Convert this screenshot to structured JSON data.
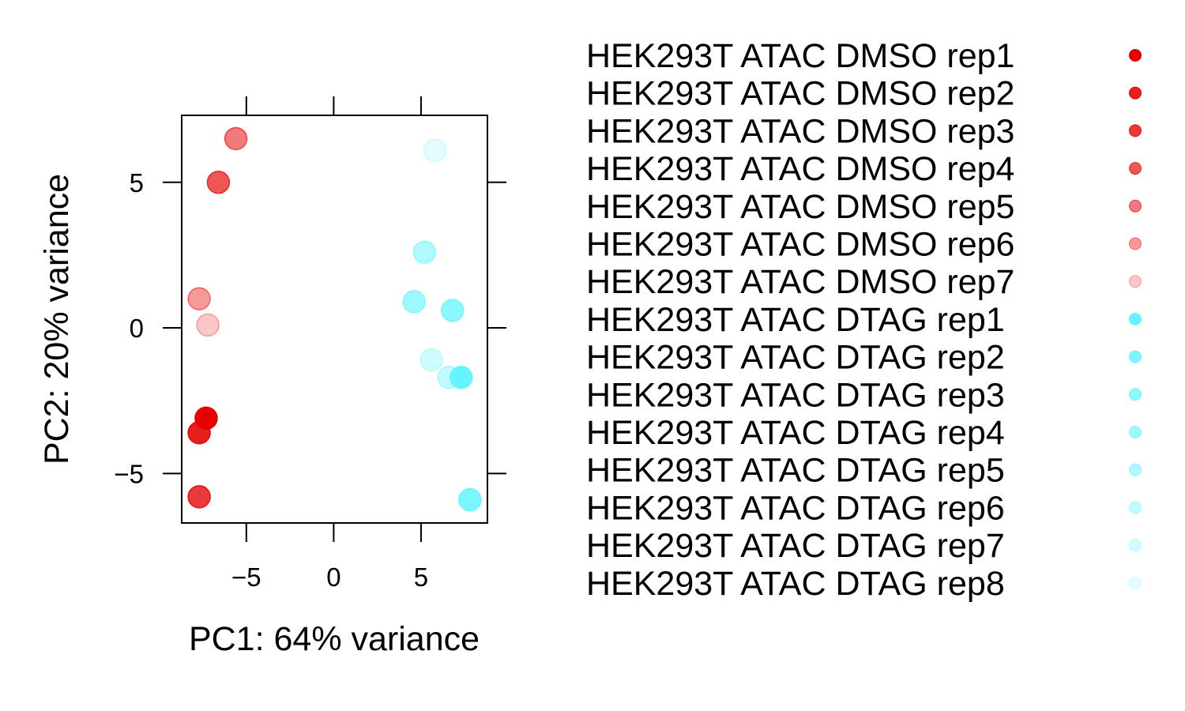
{
  "chart_data": {
    "type": "scatter",
    "xlabel": "PC1: 64% variance",
    "ylabel": "PC2: 20% variance",
    "xlim": [
      -8.7,
      8.8
    ],
    "ylim": [
      -6.7,
      7.3
    ],
    "x_ticks": [
      {
        "value": -5,
        "label": "−5"
      },
      {
        "value": 0,
        "label": "0"
      },
      {
        "value": 5,
        "label": "5"
      }
    ],
    "y_ticks": [
      {
        "value": -5,
        "label": "−5"
      },
      {
        "value": 0,
        "label": "0"
      },
      {
        "value": 5,
        "label": "5"
      }
    ],
    "legend_position": "right",
    "series": [
      {
        "name": "HEK293T ATAC DMSO rep1",
        "color": "#E60000",
        "opacity": 1.0,
        "x": -7.3,
        "y": -3.1
      },
      {
        "name": "HEK293T ATAC DMSO rep2",
        "color": "#E60000",
        "opacity": 0.88,
        "x": -7.7,
        "y": -3.6
      },
      {
        "name": "HEK293T ATAC DMSO rep3",
        "color": "#E60000",
        "opacity": 0.78,
        "x": -7.7,
        "y": -5.8
      },
      {
        "name": "HEK293T ATAC DMSO rep4",
        "color": "#E60000",
        "opacity": 0.66,
        "x": -6.6,
        "y": 5.0
      },
      {
        "name": "HEK293T ATAC DMSO rep5",
        "color": "#E60000",
        "opacity": 0.52,
        "x": -5.6,
        "y": 6.5
      },
      {
        "name": "HEK293T ATAC DMSO rep6",
        "color": "#E60000",
        "opacity": 0.4,
        "x": -7.7,
        "y": 1.0
      },
      {
        "name": "HEK293T ATAC DMSO rep7",
        "color": "#E60000",
        "opacity": 0.22,
        "x": -7.2,
        "y": 0.1
      },
      {
        "name": "HEK293T ATAC DTAG rep1",
        "color": "#66F5FF",
        "opacity": 1.0,
        "x": 7.3,
        "y": -1.7
      },
      {
        "name": "HEK293T ATAC DTAG rep2",
        "color": "#66F5FF",
        "opacity": 0.88,
        "x": 7.8,
        "y": -5.9
      },
      {
        "name": "HEK293T ATAC DTAG rep3",
        "color": "#66F5FF",
        "opacity": 0.76,
        "x": 6.8,
        "y": 0.6
      },
      {
        "name": "HEK293T ATAC DTAG rep4",
        "color": "#66F5FF",
        "opacity": 0.64,
        "x": 4.6,
        "y": 0.9
      },
      {
        "name": "HEK293T ATAC DTAG rep5",
        "color": "#66F5FF",
        "opacity": 0.52,
        "x": 5.2,
        "y": 2.6
      },
      {
        "name": "HEK293T ATAC DTAG rep6",
        "color": "#66F5FF",
        "opacity": 0.4,
        "x": 6.6,
        "y": -1.7
      },
      {
        "name": "HEK293T ATAC DTAG rep7",
        "color": "#66F5FF",
        "opacity": 0.3,
        "x": 5.6,
        "y": -1.1
      },
      {
        "name": "HEK293T ATAC DTAG rep8",
        "color": "#66F5FF",
        "opacity": 0.18,
        "x": 5.8,
        "y": 6.1
      }
    ]
  }
}
